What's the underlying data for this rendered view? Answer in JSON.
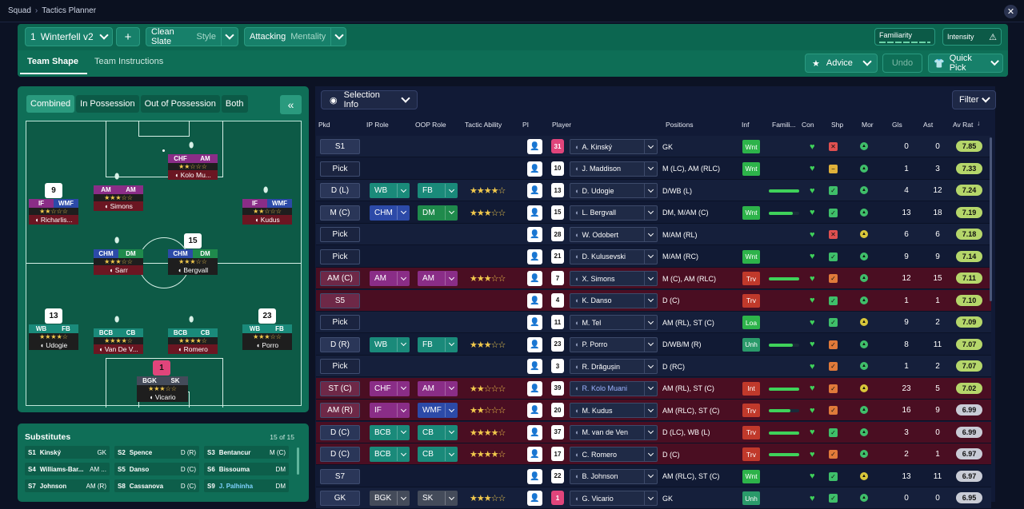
{
  "breadcrumb": {
    "root": "Squad",
    "current": "Tactics Planner"
  },
  "header": {
    "tactic_num": "1",
    "tactic_name": "Winterfell v2",
    "add": "+",
    "style_value": "Clean Slate",
    "style_label": "Style",
    "mentality_value": "Attacking",
    "mentality_label": "Mentality",
    "familiarity_label": "Familiarity",
    "intensity_label": "Intensity",
    "tabs": [
      "Team Shape",
      "Team Instructions"
    ],
    "advice": "Advice",
    "undo": "Undo",
    "quick_pick": "Quick Pick"
  },
  "pitch_tabs": [
    "Combined",
    "In Possession",
    "Out of Possession",
    "Both"
  ],
  "pitch_players": [
    {
      "r1": "CHF",
      "r2": "AM",
      "stars": "★★☆☆☆",
      "name": "Kolo Mu...",
      "c1": "#8a2d87",
      "c2": "#8a2d87",
      "bar": "#6b1622"
    },
    {
      "r1": "AM",
      "r2": "AM",
      "stars": "★★★☆☆",
      "name": "Simons",
      "c1": "#8a2d87",
      "c2": "#8a2d87",
      "bar": "#6b1622"
    },
    {
      "r1": "IF",
      "r2": "WMF",
      "stars": "★★☆☆☆",
      "name": "Richarlis...",
      "c1": "#8a2d87",
      "c2": "#2c4aa8",
      "bar": "#6b1622",
      "num": "9"
    },
    {
      "r1": "IF",
      "r2": "WMF",
      "stars": "★★☆☆☆",
      "name": "Kudus",
      "c1": "#8a2d87",
      "c2": "#2c4aa8",
      "bar": "#6b1622"
    },
    {
      "r1": "CHM",
      "r2": "DM",
      "stars": "★★★☆☆",
      "name": "Sarr",
      "c1": "#2c4aa8",
      "c2": "#1f8a4c",
      "bar": "#6b1622"
    },
    {
      "r1": "CHM",
      "r2": "DM",
      "stars": "★★★☆☆",
      "name": "Bergvall",
      "c1": "#2c4aa8",
      "c2": "#1f8a4c",
      "bar": "#1e1e1e",
      "num": "15"
    },
    {
      "r1": "WB",
      "r2": "FB",
      "stars": "★★★★☆",
      "name": "Udogie",
      "c1": "#1a8a7a",
      "c2": "#1a8a7a",
      "bar": "#1e1e1e",
      "num": "13"
    },
    {
      "r1": "BCB",
      "r2": "CB",
      "stars": "★★★★☆",
      "name": "Van De V...",
      "c1": "#1a8a7a",
      "c2": "#1a8a7a",
      "bar": "#6b1622"
    },
    {
      "r1": "BCB",
      "r2": "CB",
      "stars": "★★★★☆",
      "name": "Romero",
      "c1": "#1a8a7a",
      "c2": "#1a8a7a",
      "bar": "#6b1622"
    },
    {
      "r1": "WB",
      "r2": "FB",
      "stars": "★★★☆☆",
      "name": "Porro",
      "c1": "#1a8a7a",
      "c2": "#1a8a7a",
      "bar": "#1e1e1e",
      "num": "23"
    },
    {
      "r1": "BGK",
      "r2": "SK",
      "stars": "★★★☆☆",
      "name": "Vicario",
      "c1": "#444b5a",
      "c2": "#444b5a",
      "bar": "#1e1e1e",
      "num": "1"
    }
  ],
  "substitutes": {
    "title": "Substitutes",
    "count": "15 of 15",
    "items": [
      {
        "slot": "S1",
        "name": "Kinský",
        "pos": "GK"
      },
      {
        "slot": "S2",
        "name": "Spence",
        "pos": "D (R)"
      },
      {
        "slot": "S3",
        "name": "Bentancur",
        "pos": "M (C)"
      },
      {
        "slot": "S4",
        "name": "Williams-Bar...",
        "pos": "AM ..."
      },
      {
        "slot": "S5",
        "name": "Danso",
        "pos": "D (C)"
      },
      {
        "slot": "S6",
        "name": "Bissouma",
        "pos": "DM"
      },
      {
        "slot": "S7",
        "name": "Johnson",
        "pos": "AM (R)"
      },
      {
        "slot": "S8",
        "name": "Cassanova",
        "pos": "D (C)"
      },
      {
        "slot": "S9",
        "name": "J. Palhinha",
        "pos": "DM"
      }
    ]
  },
  "table": {
    "selection_info": "Selection Info",
    "filter": "Filter",
    "columns": [
      "Pkd",
      "IP Role",
      "OOP Role",
      "Tactic Ability",
      "PI",
      "Player",
      "Positions",
      "Inf",
      "Famili...",
      "Con",
      "Shp",
      "Mor",
      "Gls",
      "Ast",
      "Av Rat"
    ],
    "rows": [
      {
        "pkd": "S1",
        "ip": "",
        "oop": "",
        "stars": "",
        "num": "31",
        "name": "A. Kinský",
        "pos": "GK",
        "inf": "Wnt",
        "fam": 0,
        "shp": "x",
        "mor": "g",
        "gls": "0",
        "ast": "0",
        "rat": "7.85",
        "bg": "r-even",
        "pkdbg": "#2a3658"
      },
      {
        "pkd": "Pick",
        "ip": "",
        "oop": "",
        "stars": "",
        "num": "10",
        "name": "J. Maddison",
        "pos": "M (LC), AM (RLC)",
        "inf": "Wnt",
        "fam": 0,
        "shp": "-",
        "mor": "g",
        "gls": "1",
        "ast": "3",
        "rat": "7.33",
        "bg": "r-odd",
        "pkdbg": "#1f2a48"
      },
      {
        "pkd": "D (L)",
        "ip": "WB",
        "oop": "FB",
        "stars": "★★★★☆",
        "num": "13",
        "name": "D. Udogie",
        "pos": "D/WB (L)",
        "inf": "",
        "fam": 1,
        "shp": "v",
        "mor": "g",
        "gls": "4",
        "ast": "12",
        "rat": "7.24",
        "bg": "r-even",
        "pkdbg": "#2a3658",
        "ipc": "#1a8a7a",
        "oopc": "#1a8a7a"
      },
      {
        "pkd": "M (C)",
        "ip": "CHM",
        "oop": "DM",
        "stars": "★★★☆☆",
        "num": "15",
        "name": "L. Bergvall",
        "pos": "DM, M/AM (C)",
        "inf": "Wnt",
        "fam": 0.8,
        "shp": "v",
        "mor": "g",
        "gls": "13",
        "ast": "18",
        "rat": "7.19",
        "bg": "r-odd",
        "pkdbg": "#2a3658",
        "ipc": "#2c4aa8",
        "oopc": "#1f8a4c"
      },
      {
        "pkd": "Pick",
        "ip": "",
        "oop": "",
        "stars": "",
        "num": "28",
        "name": "W. Odobert",
        "pos": "M/AM (RL)",
        "inf": "",
        "fam": 0,
        "shp": "x",
        "mor": "y",
        "gls": "6",
        "ast": "6",
        "rat": "7.18",
        "bg": "r-even",
        "pkdbg": "#1f2a48"
      },
      {
        "pkd": "Pick",
        "ip": "",
        "oop": "",
        "stars": "",
        "num": "21",
        "name": "D. Kulusevski",
        "pos": "M/AM (RC)",
        "inf": "Wnt",
        "fam": 0,
        "shp": "v",
        "mor": "g",
        "gls": "9",
        "ast": "9",
        "rat": "7.14",
        "bg": "r-odd",
        "pkdbg": "#1f2a48"
      },
      {
        "pkd": "AM (C)",
        "ip": "AM",
        "oop": "AM",
        "stars": "★★★☆☆",
        "num": "7",
        "name": "X. Simons",
        "pos": "M (C), AM (RLC)",
        "inf": "Trv",
        "fam": 1,
        "shp": "o",
        "mor": "g",
        "gls": "12",
        "ast": "15",
        "rat": "7.11",
        "bg": "r-red",
        "pkdbg": "#6e2847",
        "ipc": "#8a2d87",
        "oopc": "#8a2d87"
      },
      {
        "pkd": "S5",
        "ip": "",
        "oop": "",
        "stars": "",
        "num": "4",
        "name": "K. Danso",
        "pos": "D (C)",
        "inf": "Trv",
        "fam": 0,
        "shp": "v",
        "mor": "g",
        "gls": "1",
        "ast": "1",
        "rat": "7.10",
        "bg": "r-red",
        "pkdbg": "#6e2847"
      },
      {
        "pkd": "Pick",
        "ip": "",
        "oop": "",
        "stars": "",
        "num": "11",
        "name": "M. Tel",
        "pos": "AM (RL), ST (C)",
        "inf": "Loa",
        "fam": 0,
        "shp": "v",
        "mor": "y",
        "gls": "9",
        "ast": "2",
        "rat": "7.09",
        "bg": "r-even",
        "pkdbg": "#1f2a48"
      },
      {
        "pkd": "D (R)",
        "ip": "WB",
        "oop": "FB",
        "stars": "★★★☆☆",
        "num": "23",
        "name": "P. Porro",
        "pos": "D/WB/M (R)",
        "inf": "Unh",
        "fam": 0.8,
        "shp": "o",
        "mor": "g",
        "gls": "8",
        "ast": "11",
        "rat": "7.07",
        "bg": "r-odd",
        "pkdbg": "#2a3658",
        "ipc": "#1a8a7a",
        "oopc": "#1a8a7a"
      },
      {
        "pkd": "Pick",
        "ip": "",
        "oop": "",
        "stars": "",
        "num": "3",
        "name": "R. Drăgușin",
        "pos": "D (RC)",
        "inf": "",
        "fam": 0,
        "shp": "o",
        "mor": "g",
        "gls": "1",
        "ast": "2",
        "rat": "7.07",
        "bg": "r-even",
        "pkdbg": "#1f2a48"
      },
      {
        "pkd": "ST (C)",
        "ip": "CHF",
        "oop": "AM",
        "stars": "★★☆☆☆",
        "num": "39",
        "name": "R. Kolo Muani",
        "pos": "AM (RL), ST (C)",
        "inf": "Int",
        "fam": 1,
        "shp": "o",
        "mor": "y",
        "gls": "23",
        "ast": "5",
        "rat": "7.02",
        "bg": "r-red",
        "pkdbg": "#6e2847",
        "ipc": "#8a2d87",
        "oopc": "#8a2d87"
      },
      {
        "pkd": "AM (R)",
        "ip": "IF",
        "oop": "WMF",
        "stars": "★★☆☆☆",
        "num": "20",
        "name": "M. Kudus",
        "pos": "AM (RLC), ST (C)",
        "inf": "Trv",
        "fam": 0.7,
        "shp": "o",
        "mor": "g",
        "gls": "16",
        "ast": "9",
        "rat": "6.99",
        "bg": "r-red",
        "pkdbg": "#6e2847",
        "ipc": "#8a2d87",
        "oopc": "#2c4aa8"
      },
      {
        "pkd": "D (C)",
        "ip": "BCB",
        "oop": "CB",
        "stars": "★★★★☆",
        "num": "37",
        "name": "M. van de Ven",
        "pos": "D (LC), WB (L)",
        "inf": "Trv",
        "fam": 1,
        "shp": "v",
        "mor": "g",
        "gls": "3",
        "ast": "0",
        "rat": "6.99",
        "bg": "r-red",
        "pkdbg": "#2a3658",
        "ipc": "#1a8a7a",
        "oopc": "#1a8a7a"
      },
      {
        "pkd": "D (C)",
        "ip": "BCB",
        "oop": "CB",
        "stars": "★★★★☆",
        "num": "17",
        "name": "C. Romero",
        "pos": "D (C)",
        "inf": "Trv",
        "fam": 1,
        "shp": "o",
        "mor": "g",
        "gls": "2",
        "ast": "1",
        "rat": "6.97",
        "bg": "r-red",
        "pkdbg": "#2a3658",
        "ipc": "#1a8a7a",
        "oopc": "#1a8a7a"
      },
      {
        "pkd": "S7",
        "ip": "",
        "oop": "",
        "stars": "",
        "num": "22",
        "name": "B. Johnson",
        "pos": "AM (RLC), ST (C)",
        "inf": "Wnt",
        "fam": 0,
        "shp": "v",
        "mor": "y",
        "gls": "13",
        "ast": "11",
        "rat": "6.97",
        "bg": "r-odd",
        "pkdbg": "#2a3658"
      },
      {
        "pkd": "GK",
        "ip": "BGK",
        "oop": "SK",
        "stars": "★★★☆☆",
        "num": "1",
        "name": "G. Vicario",
        "pos": "GK",
        "inf": "Unh",
        "fam": 0,
        "shp": "v",
        "mor": "g",
        "gls": "0",
        "ast": "0",
        "rat": "6.95",
        "bg": "r-even",
        "pkdbg": "#2a3658",
        "ipc": "#444b5a",
        "oopc": "#444b5a"
      }
    ]
  }
}
